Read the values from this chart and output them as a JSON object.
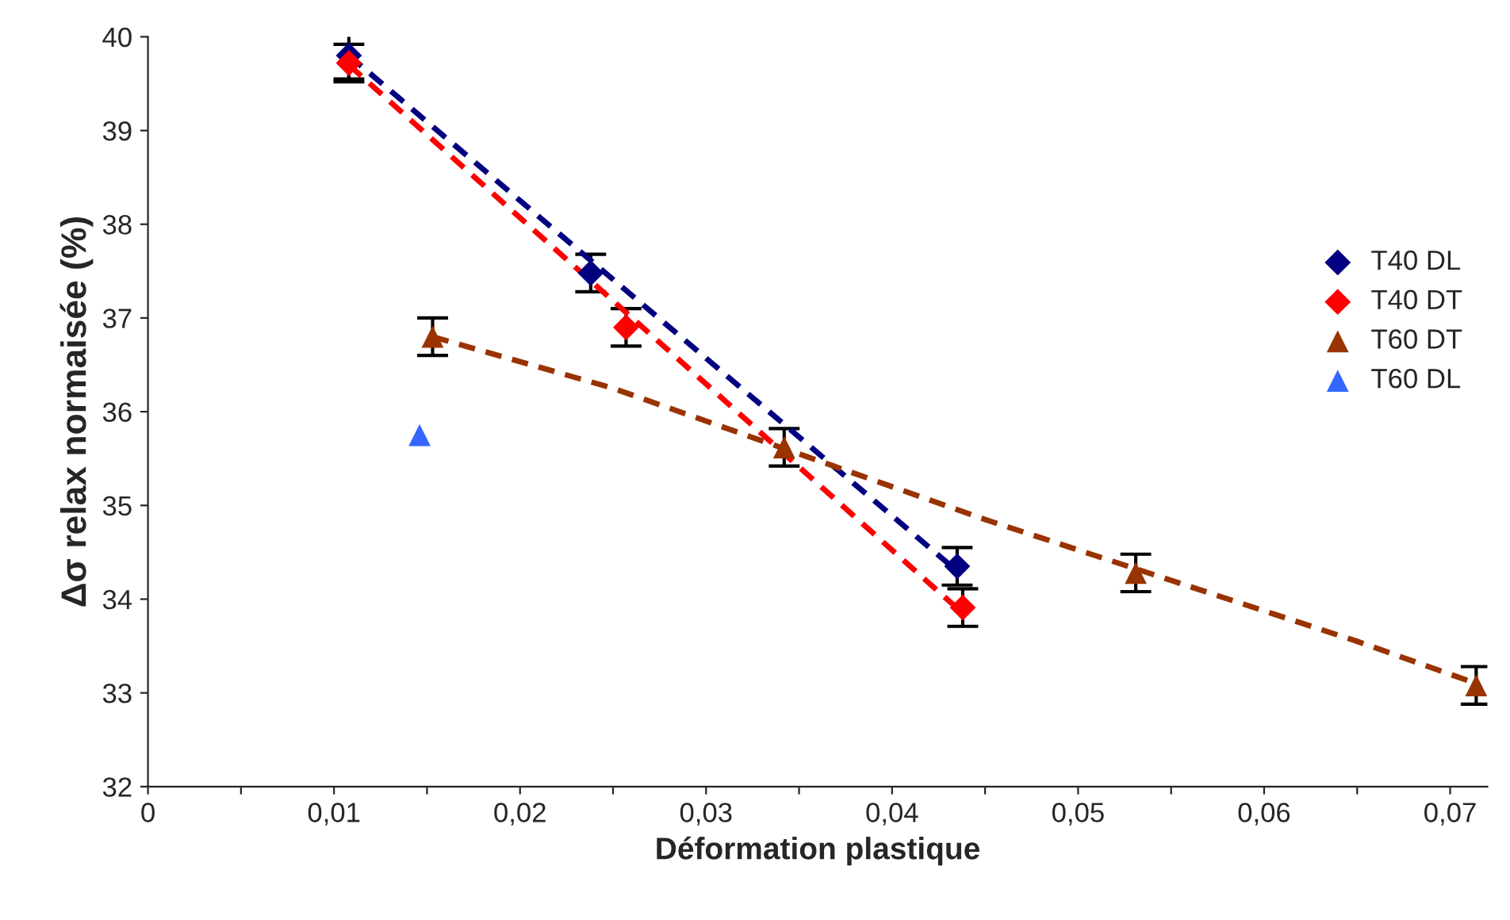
{
  "chart_data": {
    "type": "scatter",
    "xlabel": "Déformation plastique",
    "ylabel": "Δσ relax normaisée (%)",
    "xlim": [
      0,
      0.072
    ],
    "ylim": [
      32,
      40
    ],
    "xticks": [
      {
        "value": 0,
        "label": "0"
      },
      {
        "value": 0.005,
        "label": null
      },
      {
        "value": 0.01,
        "label": "0,01"
      },
      {
        "value": 0.015,
        "label": null
      },
      {
        "value": 0.02,
        "label": "0,02"
      },
      {
        "value": 0.025,
        "label": null
      },
      {
        "value": 0.03,
        "label": "0,03"
      },
      {
        "value": 0.035,
        "label": null
      },
      {
        "value": 0.04,
        "label": "0,04"
      },
      {
        "value": 0.045,
        "label": null
      },
      {
        "value": 0.05,
        "label": "0,05"
      },
      {
        "value": 0.055,
        "label": null
      },
      {
        "value": 0.06,
        "label": "0,06"
      },
      {
        "value": 0.065,
        "label": null
      },
      {
        "value": 0.07,
        "label": "0,07"
      }
    ],
    "yticks": [
      32,
      33,
      34,
      35,
      36,
      37,
      38,
      39,
      40
    ],
    "grid": false,
    "legend": "right",
    "series": [
      {
        "name": "T40 DL",
        "color": "#000080",
        "marker": "diamond",
        "x": [
          0.0108,
          0.0238,
          0.0435
        ],
        "values": [
          39.8,
          37.48,
          34.35
        ],
        "errors": [
          0.25,
          0.2,
          0.2
        ]
      },
      {
        "name": "T40 DT",
        "color": "#ff0000",
        "marker": "diamond",
        "x": [
          0.0108,
          0.0257,
          0.0438
        ],
        "values": [
          39.72,
          36.9,
          33.91
        ],
        "errors": [
          0.2,
          0.2,
          0.2
        ]
      },
      {
        "name": "T60 DT",
        "color": "#993300",
        "marker": "triangle",
        "x": [
          0.0153,
          0.0342,
          0.0531,
          0.0714
        ],
        "values": [
          36.8,
          35.62,
          34.28,
          33.08
        ],
        "errors": [
          0.2,
          0.2,
          0.2,
          0.2
        ]
      },
      {
        "name": "T60 DL",
        "color": "#3366ff",
        "marker": "triangle",
        "x": [
          0.0146
        ],
        "values": [
          35.75
        ]
      },
      {
        "type": "line",
        "color": "#000080",
        "line_style": "dashed",
        "marker": "none",
        "x": [
          0.0108,
          0.0435
        ],
        "values": [
          39.8,
          34.3
        ]
      },
      {
        "type": "line",
        "color": "#ff0000",
        "line_style": "dashed",
        "marker": "none",
        "x": [
          0.0108,
          0.0438
        ],
        "values": [
          39.7,
          33.85
        ]
      },
      {
        "type": "line",
        "color": "#993300",
        "line_style": "dashed",
        "marker": "none",
        "x": [
          0.0153,
          0.025,
          0.035,
          0.045,
          0.055,
          0.065,
          0.0714
        ],
        "values": [
          36.8,
          36.25,
          35.55,
          34.85,
          34.2,
          33.55,
          33.1
        ]
      }
    ]
  }
}
